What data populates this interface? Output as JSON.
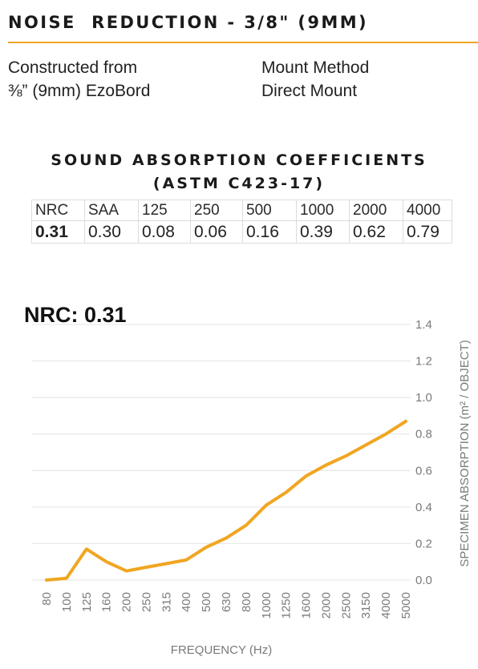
{
  "header": {
    "title": "NOISE  REDUCTION - 3/8\" (9MM)"
  },
  "specs": {
    "left_line1": "Constructed from",
    "left_line2": "⅜” (9mm) EzoBord",
    "right_line1": "Mount Method",
    "right_line2": "Direct Mount"
  },
  "coefficients": {
    "title_line1": "SOUND ABSORPTION COEFFICIENTS",
    "title_line2": "(ASTM C423-17)",
    "headers": [
      "NRC",
      "SAA",
      "125",
      "250",
      "500",
      "1000",
      "2000",
      "4000"
    ],
    "values": [
      "0.31",
      "0.30",
      "0.08",
      "0.06",
      "0.16",
      "0.39",
      "0.62",
      "0.79"
    ]
  },
  "nrc_label": "NRC: 0.31",
  "colors": {
    "accent": "#f0a622",
    "line": "#f0a622",
    "grid": "#e4e4e4",
    "axis_text": "#7a7a7a"
  },
  "chart_data": {
    "type": "line",
    "title": "",
    "xlabel": "FREQUENCY (Hz)",
    "ylabel": "SPECIMEN ABSORPTION (m² / OBJECT)",
    "x_categories": [
      "80",
      "100",
      "125",
      "160",
      "200",
      "250",
      "315",
      "400",
      "500",
      "630",
      "800",
      "1000",
      "1250",
      "1600",
      "2000",
      "2500",
      "3150",
      "4000",
      "5000"
    ],
    "y_ticks": [
      "0.0",
      "0.2",
      "0.4",
      "0.6",
      "0.8",
      "1.0",
      "1.2",
      "1.4"
    ],
    "ylim": [
      0,
      1.4
    ],
    "grid": true,
    "series": [
      {
        "values": [
          0.0,
          0.01,
          0.17,
          0.1,
          0.05,
          0.07,
          0.09,
          0.11,
          0.18,
          0.23,
          0.3,
          0.41,
          0.48,
          0.57,
          0.63,
          0.68,
          0.74,
          0.8,
          0.87
        ]
      }
    ]
  }
}
